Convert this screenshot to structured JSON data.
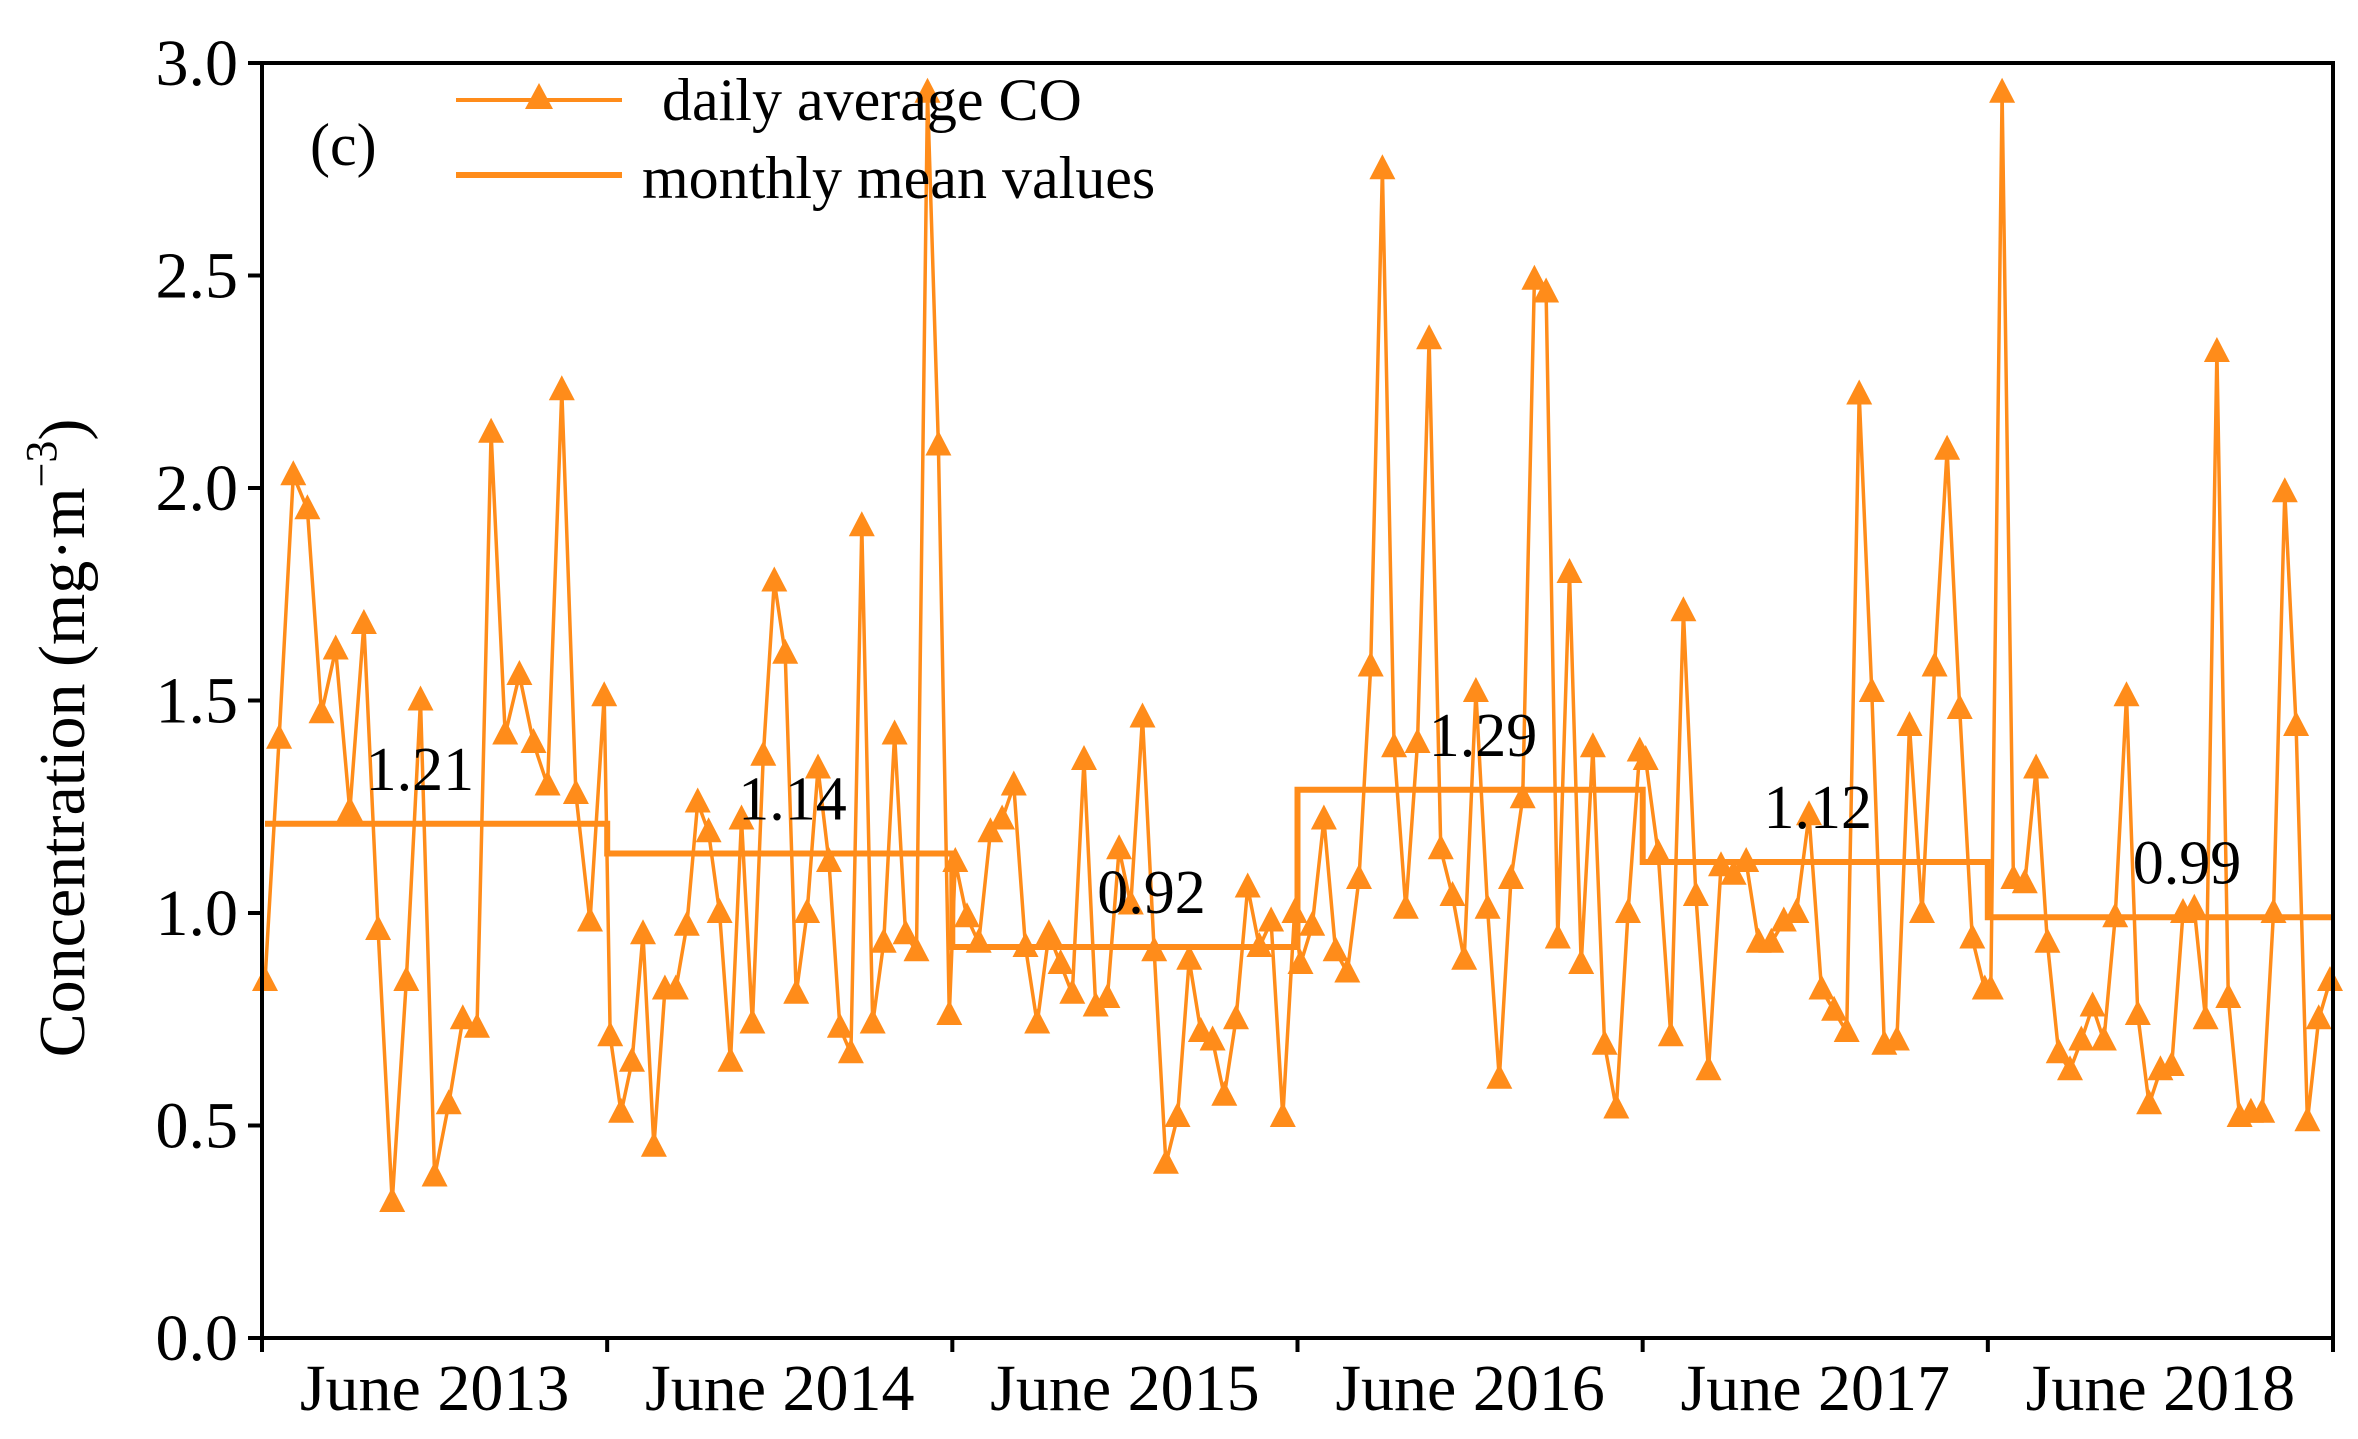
{
  "chart_data": {
    "type": "line",
    "panel_label": "(c)",
    "title": "",
    "xlabel": "",
    "ylabel": "Concentration (mg·m",
    "ylabel_superscript": "−3",
    "ylabel_close": ")",
    "ylim": [
      0.0,
      3.0
    ],
    "yticks": [
      "0.0",
      "0.5",
      "1.0",
      "1.5",
      "2.0",
      "2.5",
      "3.0"
    ],
    "ytick_values": [
      0.0,
      0.5,
      1.0,
      1.5,
      2.0,
      2.5,
      3.0
    ],
    "period_labels": [
      "June 2013",
      "June 2014",
      "June 2015",
      "June 2016",
      "June 2017",
      "June 2018"
    ],
    "colors": {
      "line": "#FF8C1A",
      "axis": "#000000"
    },
    "legend": {
      "position": "top-left",
      "entries": [
        "daily average CO",
        "monthly mean values"
      ]
    },
    "series": [
      {
        "name": "daily average CO",
        "marker": "triangle",
        "groups": [
          [
            0.84,
            1.41,
            2.03,
            1.95,
            1.47,
            1.62,
            1.24,
            1.68,
            0.96,
            0.32,
            0.84,
            1.5,
            0.38,
            0.55,
            0.75,
            0.73,
            2.13,
            1.42,
            1.56,
            1.4,
            1.3,
            2.23,
            1.28,
            0.98,
            1.51
          ],
          [
            0.71,
            0.53,
            0.65,
            0.95,
            0.45,
            0.82,
            0.82,
            0.97,
            1.26,
            1.19,
            1.0,
            0.65,
            1.22,
            0.74,
            1.37,
            1.78,
            1.61,
            0.81,
            1.0,
            1.34,
            1.12,
            0.73,
            0.67,
            1.91,
            0.74,
            0.93,
            1.42,
            0.95,
            0.91,
            2.93,
            2.1,
            0.76
          ],
          [
            1.12,
            0.99,
            0.93,
            1.19,
            1.22,
            1.3,
            0.92,
            0.74,
            0.95,
            0.88,
            0.81,
            1.36,
            0.78,
            0.8,
            1.15,
            1.02,
            1.46,
            0.91,
            0.41,
            0.52,
            0.89,
            0.72,
            0.7,
            0.57,
            0.75,
            1.06,
            0.92,
            0.98,
            0.52,
            1.0
          ],
          [
            0.88,
            0.97,
            1.22,
            0.91,
            0.86,
            1.08,
            1.58,
            2.75,
            1.39,
            1.01,
            1.4,
            2.35,
            1.15,
            1.04,
            0.89,
            1.52,
            1.01,
            0.61,
            1.08,
            1.27,
            2.49,
            2.46,
            0.94,
            1.8,
            0.88,
            1.39,
            0.69,
            0.54,
            1.0,
            1.38
          ],
          [
            1.36,
            1.14,
            0.71,
            1.71,
            1.04,
            0.63,
            1.11,
            1.09,
            1.12,
            0.93,
            0.93,
            0.98,
            1.0,
            1.23,
            0.82,
            0.77,
            0.72,
            2.22,
            1.52,
            0.69,
            0.7,
            1.44,
            1.0,
            1.58,
            2.09,
            1.48,
            0.94,
            0.82
          ],
          [
            0.82,
            2.93,
            1.08,
            1.07,
            1.34,
            0.93,
            0.67,
            0.63,
            0.7,
            0.78,
            0.7,
            0.99,
            1.51,
            0.76,
            0.55,
            0.63,
            0.64,
            1.0,
            1.01,
            0.75,
            2.32,
            0.8,
            0.52,
            0.53,
            0.53,
            1.0,
            1.99,
            1.44,
            0.51,
            0.75,
            0.84
          ]
        ]
      },
      {
        "name": "monthly mean values",
        "marker": "none",
        "segment_values": [
          1.21,
          1.14,
          0.92,
          1.29,
          1.12,
          0.99
        ],
        "segment_labels": [
          "1.21",
          "1.14",
          "0.92",
          "1.29",
          "1.12",
          "0.99"
        ]
      }
    ]
  }
}
